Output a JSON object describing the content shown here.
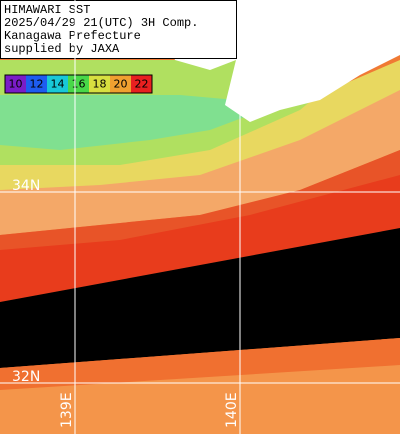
{
  "header": {
    "lines": [
      "HIMAWARI SST",
      "2025/04/29 21(UTC) 3H Comp.",
      "Kanagawa Prefecture",
      "supplied by JAXA"
    ]
  },
  "legend": {
    "labels": [
      10,
      12,
      14,
      16,
      18,
      20,
      22
    ],
    "colors": [
      "#7a1cc8",
      "#1e5cf0",
      "#18c8d8",
      "#48d848",
      "#d8e040",
      "#f0a030",
      "#e82020"
    ]
  },
  "grid": {
    "latitudes": [
      "34N",
      "32N"
    ],
    "longitudes": [
      "139E",
      "140E"
    ]
  }
}
